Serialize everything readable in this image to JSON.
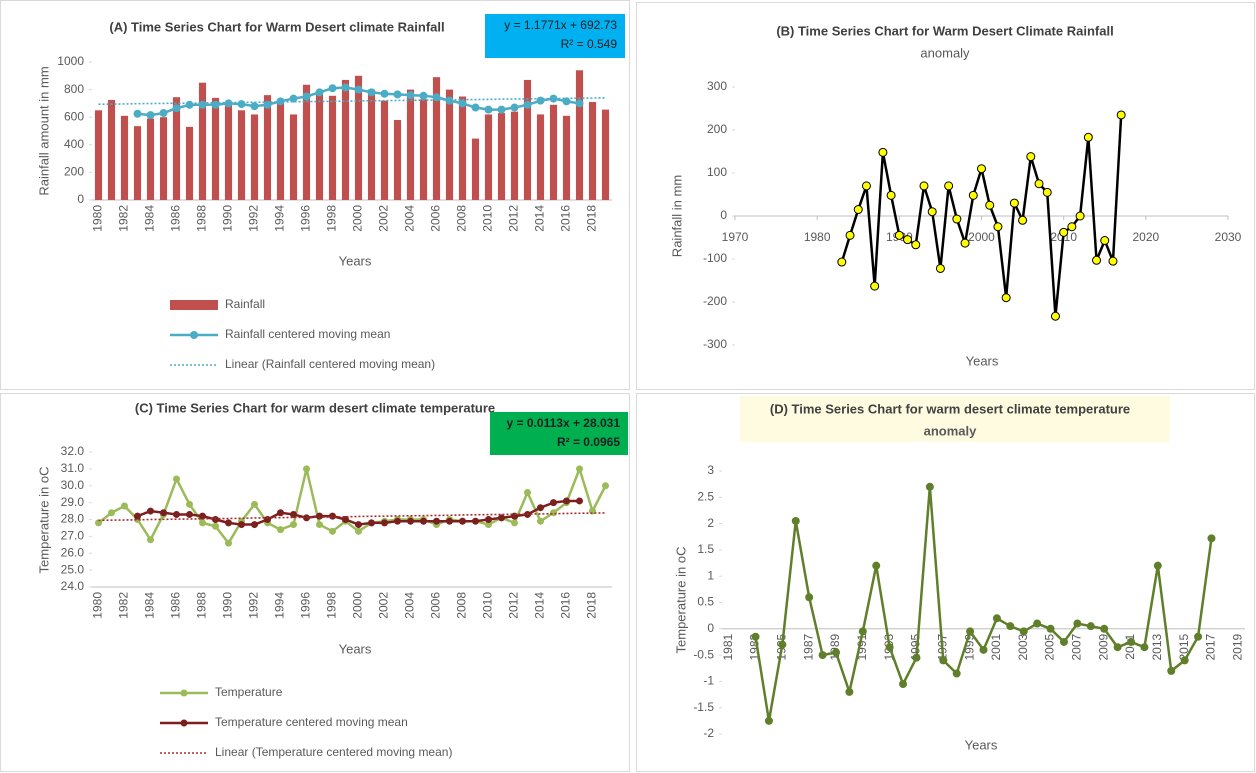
{
  "chart_data": [
    {
      "type": "bar",
      "title": "(A) Time Series Chart for Warm Desert climate Rainfall",
      "x_label": "Years",
      "y_label": "Rainfall amount in mm",
      "annotations": [
        "y = 1.1771x + 692.73",
        "R² = 0.549"
      ],
      "annotation_color": "#00b0f0",
      "categories": [
        "1980",
        null,
        "1982",
        null,
        "1984",
        null,
        "1986",
        null,
        "1988",
        null,
        "1990",
        null,
        "1992",
        null,
        "1994",
        null,
        "1996",
        null,
        "1998",
        null,
        "2000",
        null,
        "2002",
        null,
        "2004",
        null,
        "2006",
        null,
        "2008",
        null,
        "2010",
        null,
        "2012",
        null,
        "2014",
        null,
        "2016",
        null,
        "2018",
        null
      ],
      "series": [
        {
          "name": "Rainfall",
          "type": "bar",
          "color": "#c0504d",
          "values": [
            650,
            725,
            610,
            535,
            590,
            600,
            745,
            530,
            850,
            740,
            690,
            650,
            620,
            760,
            700,
            620,
            835,
            780,
            755,
            870,
            900,
            800,
            720,
            580,
            800,
            730,
            890,
            800,
            750,
            445,
            620,
            630,
            640,
            870,
            620,
            690,
            610,
            940,
            710,
            655
          ]
        },
        {
          "name": "Rainfall centered moving mean",
          "type": "line",
          "color": "#4bacc6",
          "marker": true,
          "values": [
            null,
            null,
            null,
            625,
            615,
            630,
            665,
            690,
            690,
            690,
            700,
            695,
            680,
            690,
            715,
            735,
            750,
            780,
            810,
            815,
            800,
            780,
            770,
            765,
            760,
            755,
            745,
            720,
            700,
            670,
            655,
            655,
            670,
            690,
            720,
            735,
            715,
            700,
            null,
            null
          ]
        },
        {
          "name": "Linear (Rainfall centered moving mean)",
          "type": "line",
          "color": "#4bacc6",
          "dash": "dotted",
          "values": [
            694,
            695,
            696,
            698,
            699,
            700,
            701,
            702,
            703,
            705,
            706,
            707,
            708,
            709,
            711,
            712,
            713,
            714,
            715,
            716,
            718,
            719,
            720,
            721,
            722,
            724,
            725,
            726,
            727,
            728,
            729,
            731,
            732,
            733,
            734,
            735,
            736,
            738,
            739,
            740
          ]
        }
      ],
      "ylim": [
        0,
        1000
      ],
      "yticks": [
        0,
        200,
        400,
        600,
        800,
        1000
      ],
      "legend": "bottom"
    },
    {
      "type": "line",
      "title": "(B) Time Series Chart for Warm Desert Climate Rainfall",
      "subtitle": "anomaly",
      "x_label": "Years",
      "y_label": "Rainfall in mm",
      "x": [
        1983,
        1984,
        1985,
        1986,
        1987,
        1988,
        1989,
        1990,
        1991,
        1992,
        1993,
        1994,
        1995,
        1996,
        1997,
        1998,
        1999,
        2000,
        2001,
        2002,
        2003,
        2004,
        2005,
        2006,
        2007,
        2008,
        2009,
        2010,
        2011,
        2012,
        2013,
        2014,
        2015,
        2016,
        2017
      ],
      "series": [
        {
          "color": "#000000",
          "marker": true,
          "marker_color": "#ffff00",
          "values": [
            -107,
            -45,
            15,
            70,
            -163,
            148,
            48,
            -45,
            -55,
            -67,
            70,
            10,
            -122,
            70,
            -7,
            -63,
            48,
            110,
            25,
            -25,
            -190,
            30,
            -10,
            138,
            75,
            55,
            -233,
            -38,
            -25,
            0,
            183,
            -103,
            -57,
            -105,
            235
          ]
        }
      ],
      "xlim": [
        1970,
        2030
      ],
      "xticks": [
        1970,
        1980,
        1990,
        2000,
        2010,
        2020,
        2030
      ],
      "ylim": [
        -300,
        300
      ],
      "yticks": [
        -300,
        -200,
        -100,
        0,
        100,
        200,
        300
      ]
    },
    {
      "type": "line",
      "title": "(C) Time Series Chart for warm desert climate temperature",
      "x_label": "Years",
      "y_label": "Temperature in oC",
      "annotations": [
        "y = 0.0113x + 28.031",
        "R² = 0.0965"
      ],
      "annotation_color": "#00b050",
      "categories": [
        "1980",
        null,
        "1982",
        null,
        "1984",
        null,
        "1986",
        null,
        "1988",
        null,
        "1990",
        null,
        "1992",
        null,
        "1994",
        null,
        "1996",
        null,
        "1998",
        null,
        "2000",
        null,
        "2002",
        null,
        "2004",
        null,
        "2006",
        null,
        "2008",
        null,
        "2010",
        null,
        "2012",
        null,
        "2014",
        null,
        "2016",
        null,
        "2018",
        null
      ],
      "series": [
        {
          "name": "Temperature",
          "type": "line",
          "color": "#9bbb59",
          "marker": true,
          "values": [
            27.8,
            28.4,
            28.8,
            28.0,
            26.8,
            28.3,
            30.4,
            28.9,
            27.8,
            27.6,
            26.6,
            27.9,
            28.9,
            27.8,
            27.4,
            27.7,
            31.0,
            27.7,
            27.3,
            27.9,
            27.3,
            27.8,
            27.9,
            28.0,
            28.0,
            28.0,
            27.7,
            28.0,
            27.9,
            27.9,
            27.7,
            28.1,
            27.8,
            29.6,
            27.9,
            28.4,
            29.0,
            31.0,
            28.5,
            30.0
          ]
        },
        {
          "name": "Temperature centered moving mean",
          "type": "line",
          "color": "#7b1f1f",
          "marker": true,
          "values": [
            null,
            null,
            null,
            28.2,
            28.5,
            28.4,
            28.3,
            28.3,
            28.2,
            28.0,
            27.8,
            27.7,
            27.7,
            28.0,
            28.4,
            28.3,
            28.1,
            28.2,
            28.2,
            28.0,
            27.7,
            27.8,
            27.8,
            27.9,
            27.9,
            27.9,
            27.9,
            27.9,
            27.9,
            27.9,
            28.0,
            28.1,
            28.2,
            28.3,
            28.7,
            29.0,
            29.1,
            29.1,
            null,
            null
          ]
        },
        {
          "name": "Linear (Temperature centered moving mean)",
          "type": "line",
          "color": "#a0302c",
          "dash": "dotted",
          "values": [
            27.95,
            27.96,
            27.97,
            27.98,
            28.0,
            28.01,
            28.02,
            28.03,
            28.04,
            28.05,
            28.06,
            28.07,
            28.09,
            28.1,
            28.11,
            28.12,
            28.13,
            28.14,
            28.15,
            28.16,
            28.18,
            28.19,
            28.2,
            28.21,
            28.22,
            28.23,
            28.24,
            28.25,
            28.27,
            28.28,
            28.29,
            28.3,
            28.31,
            28.32,
            28.33,
            28.34,
            28.36,
            28.37,
            28.38,
            28.39
          ]
        }
      ],
      "ylim": [
        24,
        32
      ],
      "yticks": [
        {
          "value": 24,
          "label": "24.0"
        },
        {
          "value": 25,
          "label": "25.0"
        },
        {
          "value": 26,
          "label": "26.0"
        },
        {
          "value": 27,
          "label": "27.0"
        },
        {
          "value": 28,
          "label": "28.0"
        },
        {
          "value": 29,
          "label": "29.0"
        },
        {
          "value": 30,
          "label": "30.0"
        },
        {
          "value": 31,
          "label": "31.0"
        },
        {
          "value": 32,
          "label": "32.0"
        }
      ],
      "legend": "bottom"
    },
    {
      "type": "line",
      "title": "(D) Time Series Chart for warm desert climate temperature",
      "subtitle": "anomaly",
      "x_label": "Years",
      "y_label": "Temperature in oC",
      "categories": [
        "1981",
        null,
        "1983",
        null,
        "1985",
        null,
        "1987",
        null,
        "1989",
        null,
        "1991",
        null,
        "1993",
        null,
        "1995",
        null,
        "1997",
        null,
        "1999",
        null,
        "2001",
        null,
        "2003",
        null,
        "2005",
        null,
        "2007",
        null,
        "2009",
        null,
        "2011",
        null,
        "2013",
        null,
        "2015",
        null,
        "2017",
        null,
        "2019"
      ],
      "series": [
        {
          "color": "#5f7f2a",
          "marker": true,
          "values": [
            null,
            null,
            -0.15,
            -1.75,
            -0.3,
            2.05,
            0.6,
            -0.5,
            -0.45,
            -1.2,
            -0.05,
            1.2,
            -0.35,
            -1.05,
            -0.55,
            2.7,
            -0.6,
            -0.85,
            -0.05,
            -0.4,
            0.2,
            0.05,
            -0.05,
            0.1,
            0,
            -0.25,
            0.1,
            0.05,
            0,
            -0.35,
            -0.25,
            -0.35,
            1.2,
            -0.8,
            -0.6,
            -0.15,
            1.72,
            null,
            null
          ]
        }
      ],
      "ylim": [
        -2,
        3
      ],
      "yticks": [
        -2,
        -1.5,
        -1,
        -0.5,
        0,
        0.5,
        1,
        1.5,
        2,
        2.5,
        3
      ]
    }
  ]
}
